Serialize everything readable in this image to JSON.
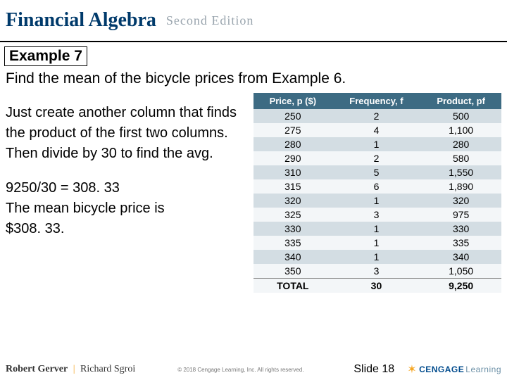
{
  "header": {
    "brand": "Financial Algebra",
    "edition": "Second Edition"
  },
  "example_label": "Example 7",
  "prompt": "Find the mean of the bicycle prices from Example 6.",
  "explain": "Just create another column that finds the product of the first two columns. Then divide by 30 to find the avg.",
  "calc_line": "9250/30 = 308. 33",
  "result_line1": "The mean bicycle price is",
  "result_line2": "$308. 33.",
  "table": {
    "headers": [
      "Price, p ($)",
      "Frequency, f",
      "Product, pf"
    ],
    "rows": [
      [
        "250",
        "2",
        "500"
      ],
      [
        "275",
        "4",
        "1,100"
      ],
      [
        "280",
        "1",
        "280"
      ],
      [
        "290",
        "2",
        "580"
      ],
      [
        "310",
        "5",
        "1,550"
      ],
      [
        "315",
        "6",
        "1,890"
      ],
      [
        "320",
        "1",
        "320"
      ],
      [
        "325",
        "3",
        "975"
      ],
      [
        "330",
        "1",
        "330"
      ],
      [
        "335",
        "1",
        "335"
      ],
      [
        "340",
        "1",
        "340"
      ],
      [
        "350",
        "3",
        "1,050"
      ]
    ],
    "total_label": "TOTAL",
    "total_f": "30",
    "total_pf": "9,250",
    "header_bg": "#3d6b83",
    "header_fg": "#ffffff",
    "row_even_bg": "#d3dde3",
    "row_odd_bg": "#f3f6f8"
  },
  "footer": {
    "author1": "Robert Gerver",
    "author_sep": "|",
    "author2": "Richard Sgroi",
    "copyright": "© 2018 Cengage Learning, Inc. All rights reserved.",
    "slide": "Slide 18",
    "cengage1": "CENGAGE",
    "cengage2": "Learning"
  }
}
